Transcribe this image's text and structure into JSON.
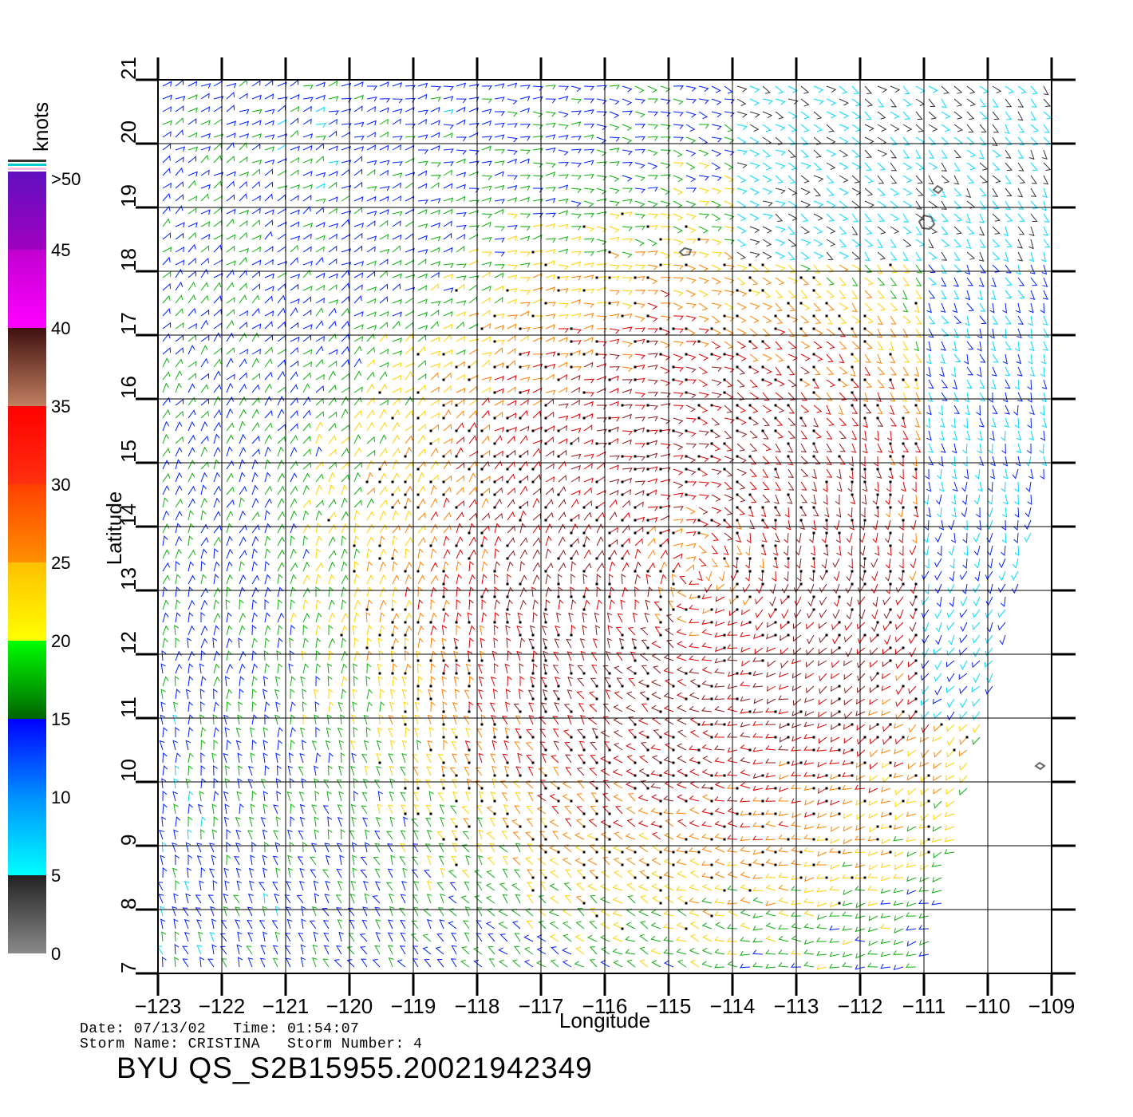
{
  "map": {
    "xlabel": "Longitude",
    "ylabel": "Latitude",
    "lon_ticks": [
      "−123",
      "−122",
      "−121",
      "−120",
      "−119",
      "−118",
      "−117",
      "−116",
      "−115",
      "−114",
      "−113",
      "−112",
      "−111",
      "−110",
      "−109"
    ],
    "lat_ticks": [
      "7",
      "8",
      "9",
      "10",
      "11",
      "12",
      "13",
      "14",
      "15",
      "16",
      "17",
      "18",
      "19",
      "20",
      "21"
    ],
    "lon_range": [
      -123,
      -109
    ],
    "lat_range": [
      7,
      21
    ],
    "grid": true
  },
  "colorbar": {
    "unit": "knots",
    "tick_labels": [
      "0",
      "5",
      "10",
      "15",
      "20",
      "25",
      "30",
      "35",
      "40",
      "45",
      ">50"
    ],
    "bands": [
      {
        "from": 0,
        "to": 5,
        "colors": [
          "#8a8a8a",
          "#222222"
        ]
      },
      {
        "from": 5,
        "to": 10,
        "colors": [
          "#00ffff",
          "#0090ff"
        ]
      },
      {
        "from": 10,
        "to": 15,
        "colors": [
          "#0090ff",
          "#0000ff"
        ]
      },
      {
        "from": 15,
        "to": 20,
        "colors": [
          "#006400",
          "#00ff00"
        ]
      },
      {
        "from": 20,
        "to": 25,
        "colors": [
          "#ffff00",
          "#ffc000"
        ]
      },
      {
        "from": 25,
        "to": 30,
        "colors": [
          "#ff9000",
          "#ff4000"
        ]
      },
      {
        "from": 30,
        "to": 35,
        "colors": [
          "#ff3010",
          "#ff0000"
        ]
      },
      {
        "from": 35,
        "to": 40,
        "colors": [
          "#c08060",
          "#401010"
        ]
      },
      {
        "from": 40,
        "to": 45,
        "colors": [
          "#ff00ff",
          "#c000d0"
        ]
      },
      {
        "from": 45,
        "to": 50,
        "colors": [
          "#a000c0",
          "#6010c0"
        ]
      }
    ]
  },
  "info": {
    "line1": "Date: 07/13/02   Time: 01:54:07",
    "line2": "Storm Name: CRISTINA   Storm Number: 4",
    "title": "BYU QS_S2B15955.20021942349"
  },
  "wind_field": {
    "description_colors": [
      "#0000ff",
      "#0090ff",
      "#00e0ff",
      "#00c000",
      "#ffd000",
      "#ff8000",
      "#ff0000",
      "#8b1a1a",
      "#c000c0",
      "#333333"
    ]
  }
}
